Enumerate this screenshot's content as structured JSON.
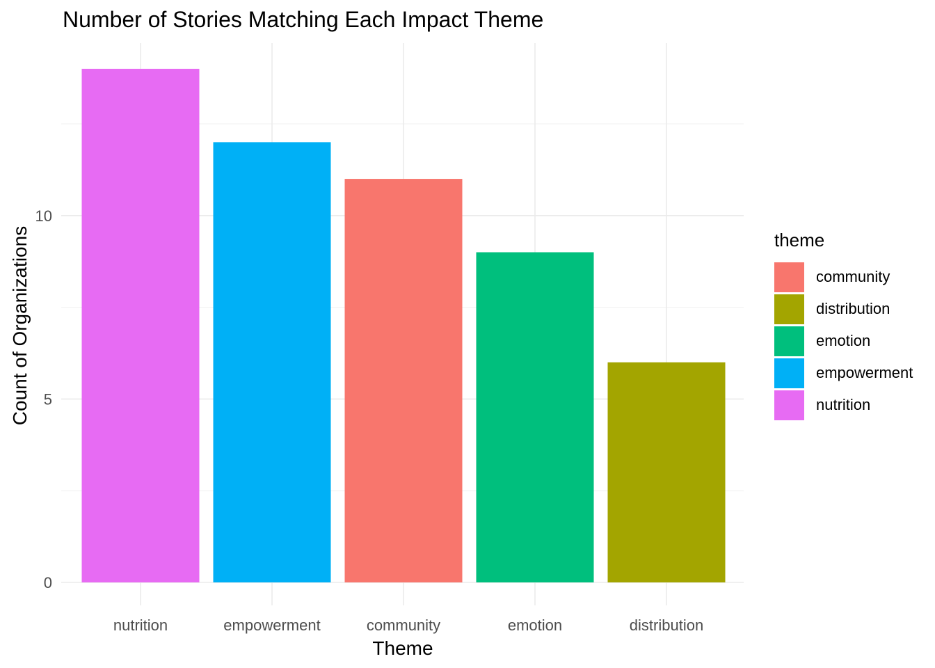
{
  "chart_data": {
    "type": "bar",
    "title": "Number of Stories Matching Each Impact Theme",
    "xlabel": "Theme",
    "ylabel": "Count of Organizations",
    "categories": [
      "nutrition",
      "empowerment",
      "community",
      "emotion",
      "distribution"
    ],
    "values": [
      14,
      12,
      11,
      9,
      6
    ],
    "bar_colors": [
      "#E76BF3",
      "#00B0F6",
      "#F8766D",
      "#00BF7D",
      "#A3A500"
    ],
    "ylim": [
      0,
      14.7
    ],
    "yticks": [
      0,
      5,
      10
    ],
    "yticks_minor": [
      2.5,
      7.5,
      12.5
    ],
    "grid": true,
    "legend": {
      "title": "theme",
      "placement": "right",
      "items": [
        {
          "label": "community",
          "color": "#F8766D"
        },
        {
          "label": "distribution",
          "color": "#A3A500"
        },
        {
          "label": "emotion",
          "color": "#00BF7D"
        },
        {
          "label": "empowerment",
          "color": "#00B0F6"
        },
        {
          "label": "nutrition",
          "color": "#E76BF3"
        }
      ]
    }
  }
}
